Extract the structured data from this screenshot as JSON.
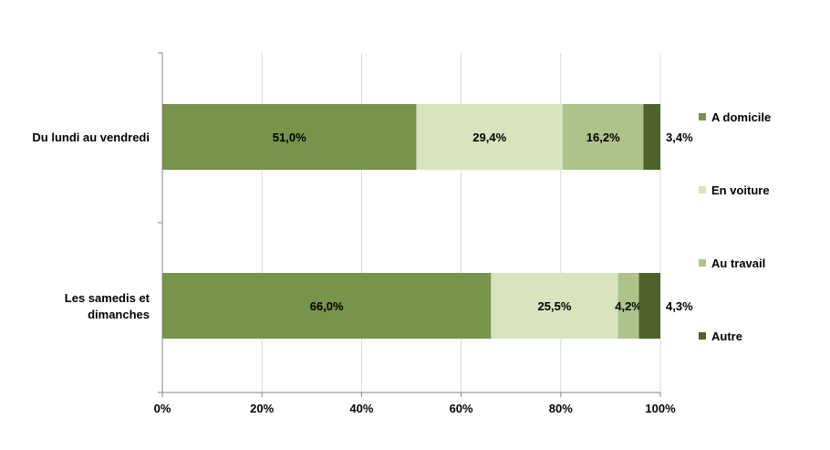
{
  "chart_data": {
    "type": "bar",
    "orientation": "horizontal",
    "stacked": true,
    "percent": true,
    "categories": [
      "Du lundi au vendredi",
      "Les samedis et dimanches"
    ],
    "series": [
      {
        "name": "A domicile",
        "values": [
          51.0,
          66.0
        ],
        "labels": [
          "51,0%",
          "66,0%"
        ],
        "color": "#76944a"
      },
      {
        "name": "En voiture",
        "values": [
          29.4,
          25.5
        ],
        "labels": [
          "29,4%",
          "25,5%"
        ],
        "color": "#d7e4bd"
      },
      {
        "name": "Au travail",
        "values": [
          16.2,
          4.2
        ],
        "labels": [
          "16,2%",
          "4,2%"
        ],
        "color": "#adc38a"
      },
      {
        "name": "Autre",
        "values": [
          3.4,
          4.3
        ],
        "labels": [
          "3,4%",
          "4,3%"
        ],
        "color": "#4f6228"
      }
    ],
    "xlim": [
      0,
      100
    ],
    "xticks": [
      "0%",
      "20%",
      "40%",
      "60%",
      "80%",
      "100%"
    ],
    "grid": true,
    "legend": "right"
  }
}
